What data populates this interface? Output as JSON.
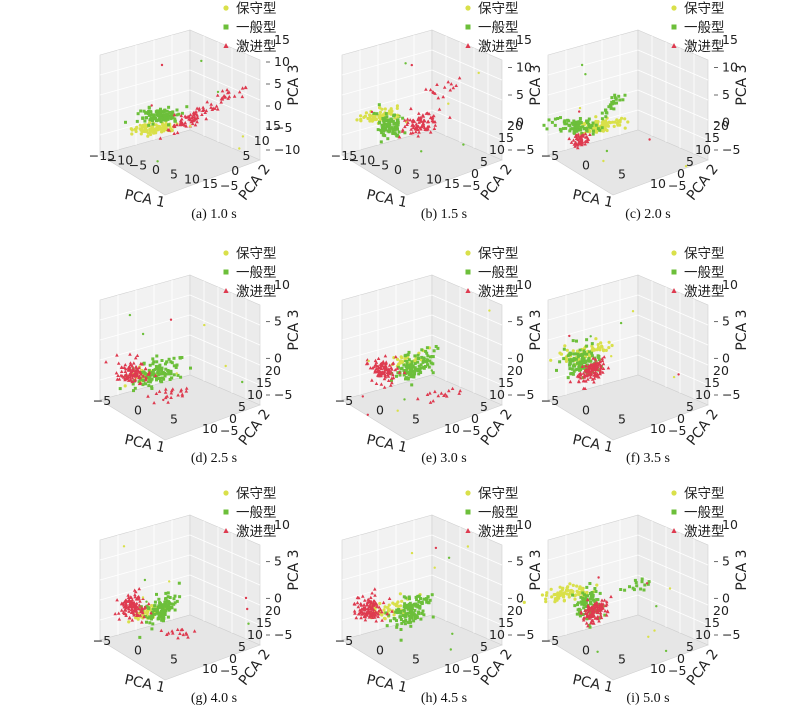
{
  "chart_data": {
    "type": "scatter3d-grid",
    "legend": [
      {
        "label": "保守型",
        "color": "#d9e04a",
        "marker": "circle"
      },
      {
        "label": "一般型",
        "color": "#6cbf3a",
        "marker": "square"
      },
      {
        "label": "激进型",
        "color": "#de3a4f",
        "marker": "triangle"
      }
    ],
    "axes": {
      "x": "PCA 1",
      "y": "PCA 2",
      "z": "PCA 3"
    },
    "panels": [
      {
        "caption": "(a) 1.0 s",
        "xticks": [
          "−15",
          "−10",
          "−5",
          "0",
          "5",
          "10",
          "15"
        ],
        "yticks": [
          "−5",
          "0",
          "5",
          "10",
          "15"
        ],
        "zticks": [
          "−10",
          "−5",
          "0",
          "5",
          "10",
          "15"
        ],
        "xlim": [
          -15,
          15
        ],
        "ylim": [
          -5,
          15
        ],
        "zlim": [
          -10,
          15
        ]
      },
      {
        "caption": "(b) 1.5 s",
        "xticks": [
          "−15",
          "−10",
          "−5",
          "0",
          "5",
          "10",
          "15"
        ],
        "yticks": [
          "−5",
          "0",
          "5",
          "10",
          "15",
          "20"
        ],
        "zticks": [
          "−5",
          "0",
          "5",
          "10",
          "15"
        ],
        "xlim": [
          -15,
          15
        ],
        "ylim": [
          -5,
          20
        ],
        "zlim": [
          -5,
          15
        ]
      },
      {
        "caption": "(c) 2.0 s",
        "xticks": [
          "−5",
          "0",
          "5",
          "10"
        ],
        "yticks": [
          "−5",
          "0",
          "5",
          "10",
          "15",
          "20"
        ],
        "zticks": [
          "−5",
          "0",
          "5",
          "10",
          "15"
        ],
        "xlim": [
          -5,
          10
        ],
        "ylim": [
          -5,
          20
        ],
        "zlim": [
          -5,
          15
        ]
      },
      {
        "caption": "(d) 2.5 s",
        "xticks": [
          "−5",
          "0",
          "5",
          "10"
        ],
        "yticks": [
          "−5",
          "0",
          "5",
          "10",
          "15",
          "20"
        ],
        "zticks": [
          "−5",
          "0",
          "5",
          "10"
        ],
        "xlim": [
          -5,
          10
        ],
        "ylim": [
          -5,
          20
        ],
        "zlim": [
          -5,
          10
        ]
      },
      {
        "caption": "(e) 3.0 s",
        "xticks": [
          "−5",
          "0",
          "5",
          "10"
        ],
        "yticks": [
          "−5",
          "0",
          "5",
          "10",
          "15",
          "20"
        ],
        "zticks": [
          "−5",
          "0",
          "5",
          "10"
        ],
        "xlim": [
          -5,
          10
        ],
        "ylim": [
          -5,
          20
        ],
        "zlim": [
          -5,
          10
        ]
      },
      {
        "caption": "(f) 3.5 s",
        "xticks": [
          "−5",
          "0",
          "5",
          "10"
        ],
        "yticks": [
          "−5",
          "0",
          "5",
          "10",
          "15",
          "20"
        ],
        "zticks": [
          "−5",
          "0",
          "5",
          "10"
        ],
        "xlim": [
          -5,
          10
        ],
        "ylim": [
          -5,
          20
        ],
        "zlim": [
          -5,
          10
        ]
      },
      {
        "caption": "(g) 4.0 s",
        "xticks": [
          "−5",
          "0",
          "5",
          "10"
        ],
        "yticks": [
          "−5",
          "0",
          "5",
          "10",
          "15",
          "20"
        ],
        "zticks": [
          "−5",
          "0",
          "5",
          "10"
        ],
        "xlim": [
          -5,
          10
        ],
        "ylim": [
          -5,
          20
        ],
        "zlim": [
          -5,
          10
        ]
      },
      {
        "caption": "(h) 4.5 s",
        "xticks": [
          "−5",
          "0",
          "5",
          "10"
        ],
        "yticks": [
          "−5",
          "0",
          "5",
          "10",
          "15",
          "20"
        ],
        "zticks": [
          "−5",
          "0",
          "5",
          "10"
        ],
        "xlim": [
          -5,
          10
        ],
        "ylim": [
          -5,
          20
        ],
        "zlim": [
          -5,
          10
        ]
      },
      {
        "caption": "(i) 5.0 s",
        "xticks": [
          "−5",
          "0",
          "5",
          "10"
        ],
        "yticks": [
          "−5",
          "0",
          "5",
          "10",
          "15",
          "20"
        ],
        "zticks": [
          "−5",
          "0",
          "5",
          "10"
        ],
        "xlim": [
          -5,
          10
        ],
        "ylim": [
          -5,
          20
        ],
        "zlim": [
          -5,
          10
        ]
      }
    ]
  }
}
